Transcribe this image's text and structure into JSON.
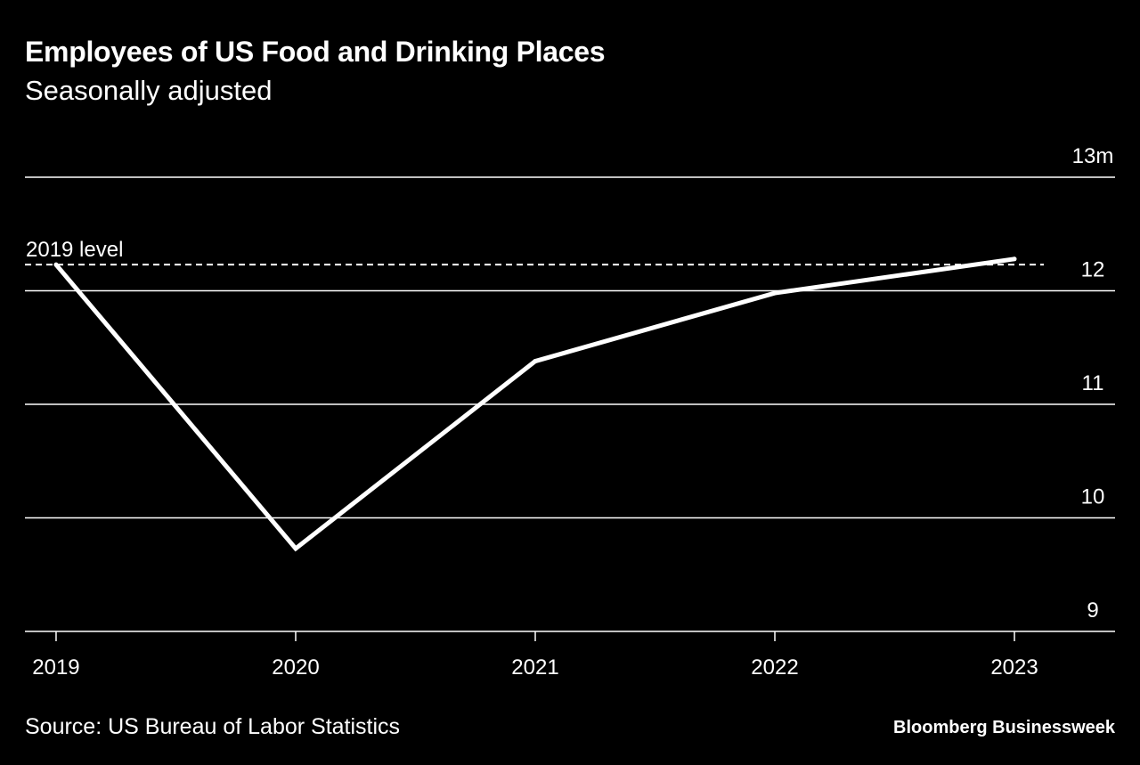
{
  "title": "Employees of US Food and Drinking Places",
  "subtitle": "Seasonally adjusted",
  "source": "Source: US Bureau of Labor Statistics",
  "brand": "Bloomberg Businessweek",
  "colors": {
    "background": "#000000",
    "foreground": "#ffffff"
  },
  "chart_data": {
    "type": "line",
    "x": [
      2019,
      2020,
      2021,
      2022,
      2023
    ],
    "x_tick_labels": [
      "2019",
      "2020",
      "2021",
      "2022",
      "2023"
    ],
    "series": [
      {
        "values": [
          12.23,
          9.73,
          11.38,
          11.98,
          12.28
        ]
      }
    ],
    "reference_line": {
      "label": "2019 level",
      "value": 12.23,
      "style": "dashed"
    },
    "y_ticks": [
      9,
      10,
      11,
      12,
      13
    ],
    "y_tick_labels": [
      "9",
      "10",
      "11",
      "12",
      "13m"
    ],
    "ylim": [
      9,
      13
    ],
    "xlim": [
      2018.87,
      2023.42
    ],
    "y_axis_side": "right",
    "grid": true
  }
}
